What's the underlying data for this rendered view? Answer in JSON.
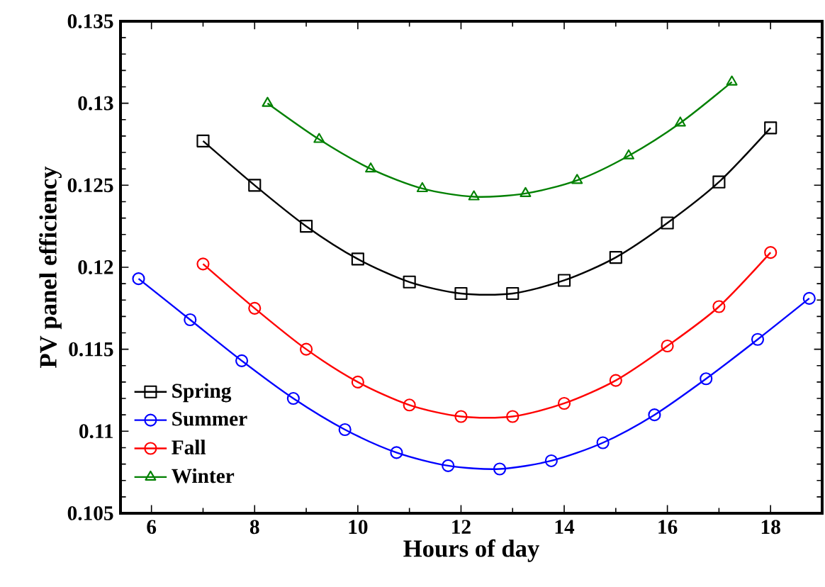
{
  "chart_data": {
    "type": "line",
    "xlabel": "Hours of day",
    "ylabel": "PV panel efficiency",
    "xlim": [
      5.4,
      19
    ],
    "ylim": [
      0.105,
      0.135
    ],
    "xticks": [
      6,
      8,
      10,
      12,
      14,
      16,
      18
    ],
    "yticks": [
      0.105,
      0.11,
      0.115,
      0.12,
      0.125,
      0.13,
      0.135
    ],
    "grid": false,
    "legend": "left",
    "line_style": "solid",
    "series": [
      {
        "name": "Spring",
        "color": "#000000",
        "marker": "square",
        "x": [
          7,
          8,
          9,
          10,
          11,
          12,
          13,
          14,
          15,
          16,
          17,
          18
        ],
        "values": [
          0.1277,
          0.125,
          0.1225,
          0.1205,
          0.1191,
          0.1184,
          0.1184,
          0.1192,
          0.1206,
          0.1227,
          0.1252,
          0.1285
        ]
      },
      {
        "name": "Summer",
        "color": "#0000ff",
        "marker": "circle",
        "x": [
          5.75,
          6.75,
          7.75,
          8.75,
          9.75,
          10.75,
          11.75,
          12.75,
          13.75,
          14.75,
          15.75,
          16.75,
          17.75,
          18.75
        ],
        "values": [
          0.1193,
          0.1168,
          0.1143,
          0.112,
          0.1101,
          0.1087,
          0.1079,
          0.1077,
          0.1082,
          0.1093,
          0.111,
          0.1132,
          0.1156,
          0.1181
        ]
      },
      {
        "name": "Fall",
        "color": "#ff0000",
        "marker": "circle",
        "x": [
          7,
          8,
          9,
          10,
          11,
          12,
          13,
          14,
          15,
          16,
          17,
          18
        ],
        "values": [
          0.1202,
          0.1175,
          0.115,
          0.113,
          0.1116,
          0.1109,
          0.1109,
          0.1117,
          0.1131,
          0.1152,
          0.1176,
          0.1209
        ]
      },
      {
        "name": "Winter",
        "color": "#008000",
        "marker": "triangle",
        "x": [
          8.25,
          9.25,
          10.25,
          11.25,
          12.25,
          13.25,
          14.25,
          15.25,
          16.25,
          17.25
        ],
        "values": [
          0.13,
          0.1278,
          0.126,
          0.1248,
          0.1243,
          0.1245,
          0.1253,
          0.1268,
          0.1288,
          0.1313
        ]
      }
    ]
  }
}
